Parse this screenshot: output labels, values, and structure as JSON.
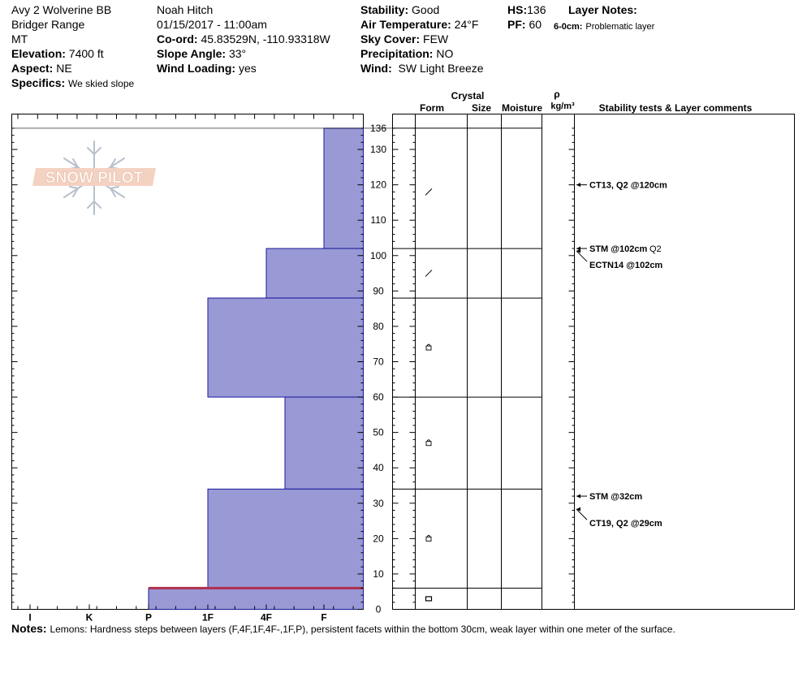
{
  "header": {
    "location": "Avy 2 Wolverine BB",
    "range": "Bridger Range",
    "state": "MT",
    "elevation_label": "Elevation:",
    "elevation": "7400 ft",
    "aspect_label": "Aspect:",
    "aspect": "NE",
    "specifics_label": "Specifics:",
    "specifics": "We skied slope",
    "observer": "Noah Hitch",
    "datetime": "01/15/2017 - 11:00am",
    "coord_label": "Co-ord:",
    "coord": "45.83529N, -110.93318W",
    "slope_label": "Slope Angle:",
    "slope": "33°",
    "wind_loading_label": "Wind Loading:",
    "wind_loading": "yes",
    "stability_label": "Stability:",
    "stability": "Good",
    "air_temp_label": "Air Temperature:",
    "air_temp": "24°F",
    "sky_label": "Sky Cover:",
    "sky": "FEW",
    "precip_label": "Precipitation:",
    "precip": "NO",
    "wind_label": "Wind:",
    "wind": "SW Light Breeze",
    "hs_label": "HS:",
    "hs": "136",
    "pf_label": "PF:",
    "pf": "60",
    "layer_notes_label": "Layer Notes:",
    "layer_note_range": "6-0cm:",
    "layer_note_text": "Problematic layer"
  },
  "logo_text": "SNOW PILOT",
  "columns": {
    "crystal": "Crystal",
    "form": "Form",
    "size": "Size",
    "moisture": "Moisture",
    "rho": "ρ",
    "density_unit": "kg/m³",
    "comments": "Stability tests & Layer comments"
  },
  "notes_label": "Notes:",
  "notes": "Lemons: Hardness steps between layers (F,4F,1F,4F-,1F,P), persistent facets within the bottom 30cm, weak layer within one meter of the surface.",
  "colors": {
    "layer_fill": "#9999d6",
    "layer_stroke": "#1a1a9a",
    "weak_layer": "#b03050"
  },
  "chart_data": {
    "type": "snow-profile",
    "hardness_axis": [
      "I",
      "K",
      "P",
      "1F",
      "4F",
      "F"
    ],
    "depth_axis": {
      "min": 0,
      "max": 136,
      "unit": "cm",
      "ticks": [
        0,
        10,
        20,
        30,
        40,
        50,
        60,
        70,
        80,
        90,
        100,
        110,
        120,
        130,
        136
      ]
    },
    "layers": [
      {
        "top": 136,
        "bottom": 102,
        "hardness": "F",
        "grain": "slash"
      },
      {
        "top": 102,
        "bottom": 88,
        "hardness": "4F",
        "grain": "slash"
      },
      {
        "top": 88,
        "bottom": 60,
        "hardness": "1F",
        "grain": "facet"
      },
      {
        "top": 60,
        "bottom": 34,
        "hardness": "4F-",
        "grain": "facet"
      },
      {
        "top": 34,
        "bottom": 6,
        "hardness": "1F",
        "grain": "facet"
      },
      {
        "top": 6,
        "bottom": 0,
        "hardness": "P",
        "grain": "depth-hoar"
      }
    ],
    "weak_layer_depth": 6,
    "tests": [
      {
        "depth": 120,
        "text": "CT13, Q2 @120cm"
      },
      {
        "depth": 102,
        "text": "STM @102cm",
        "extra": "Q2"
      },
      {
        "depth": 102,
        "text": "ECTN14 @102cm"
      },
      {
        "depth": 32,
        "text": "STM @32cm"
      },
      {
        "depth": 29,
        "text": "CT19, Q2 @29cm"
      }
    ]
  }
}
